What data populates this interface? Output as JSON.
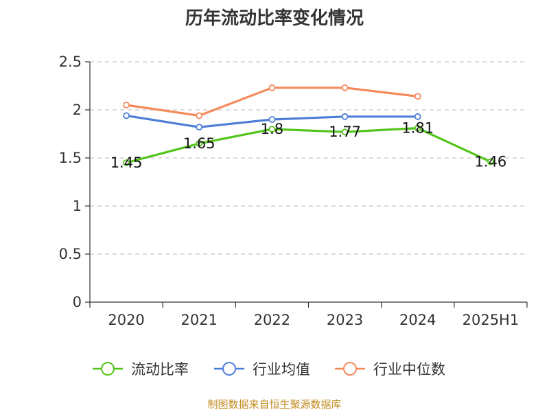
{
  "chart_data": {
    "type": "line",
    "title": "历年流动比率变化情况",
    "categories": [
      "2020",
      "2021",
      "2022",
      "2023",
      "2024",
      "2025H1"
    ],
    "yticks": [
      "0",
      "0.5",
      "1",
      "1.5",
      "2",
      "2.5"
    ],
    "ylim": [
      0,
      2.5
    ],
    "grid": true,
    "legend_position": "bottom",
    "series": [
      {
        "name": "流动比率",
        "color": "#52c41a",
        "values": [
          1.45,
          1.65,
          1.8,
          1.77,
          1.81,
          1.46
        ],
        "labels": [
          "1.45",
          "1.65",
          "1.8",
          "1.77",
          "1.81",
          "1.46"
        ]
      },
      {
        "name": "行业均值",
        "color": "#4e7fd8",
        "values": [
          1.94,
          1.82,
          1.9,
          1.93,
          1.93,
          null
        ]
      },
      {
        "name": "行业中位数",
        "color": "#f5895a",
        "values": [
          2.05,
          1.94,
          2.23,
          2.23,
          2.14,
          null
        ]
      }
    ]
  },
  "footer": "制图数据来自恒生聚源数据库"
}
